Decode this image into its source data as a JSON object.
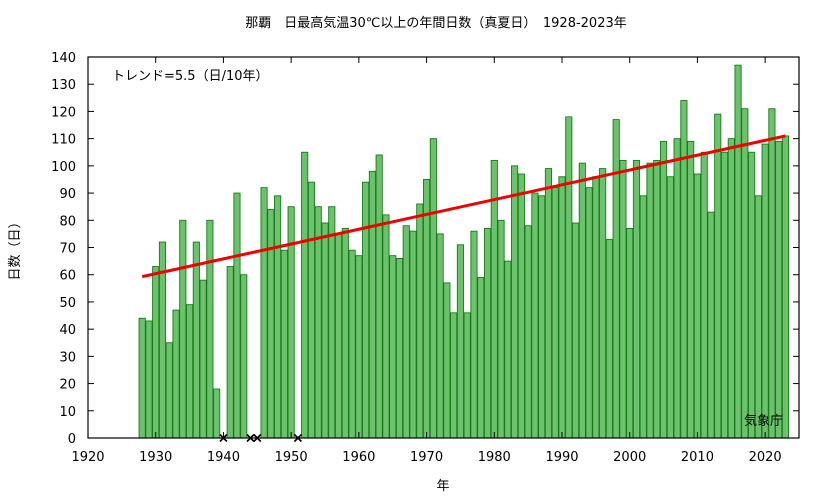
{
  "chart_data": {
    "type": "bar",
    "title": "那覇　日最高気温30℃以上の年間日数（真夏日）　1928-2023年",
    "xlabel": "年",
    "ylabel": "日数（日）",
    "annotation_trend": "トレンド=5.5（日/10年）",
    "annotation_source": "気象庁",
    "xlim": [
      1920,
      2025
    ],
    "ylim": [
      0,
      140
    ],
    "xticks": [
      1920,
      1930,
      1940,
      1950,
      1960,
      1970,
      1980,
      1990,
      2000,
      2010,
      2020
    ],
    "yticks": [
      0,
      10,
      20,
      30,
      40,
      50,
      60,
      70,
      80,
      90,
      100,
      110,
      120,
      130,
      140
    ],
    "grid": false,
    "x": [
      1928,
      1929,
      1930,
      1931,
      1932,
      1933,
      1934,
      1935,
      1936,
      1937,
      1938,
      1939,
      1940,
      1941,
      1942,
      1943,
      1944,
      1945,
      1946,
      1947,
      1948,
      1949,
      1950,
      1951,
      1952,
      1953,
      1954,
      1955,
      1956,
      1957,
      1958,
      1959,
      1960,
      1961,
      1962,
      1963,
      1964,
      1965,
      1966,
      1967,
      1968,
      1969,
      1970,
      1971,
      1972,
      1973,
      1974,
      1975,
      1976,
      1977,
      1978,
      1979,
      1980,
      1981,
      1982,
      1983,
      1984,
      1985,
      1986,
      1987,
      1988,
      1989,
      1990,
      1991,
      1992,
      1993,
      1994,
      1995,
      1996,
      1997,
      1998,
      1999,
      2000,
      2001,
      2002,
      2003,
      2004,
      2005,
      2006,
      2007,
      2008,
      2009,
      2010,
      2011,
      2012,
      2013,
      2014,
      2015,
      2016,
      2017,
      2018,
      2019,
      2020,
      2021,
      2022,
      2023
    ],
    "values": [
      44,
      43,
      63,
      72,
      35,
      47,
      80,
      49,
      72,
      58,
      80,
      18,
      null,
      63,
      90,
      60,
      null,
      null,
      92,
      84,
      89,
      69,
      85,
      null,
      105,
      94,
      85,
      79,
      85,
      75,
      77,
      69,
      67,
      94,
      98,
      104,
      82,
      67,
      66,
      78,
      76,
      86,
      95,
      110,
      75,
      57,
      46,
      71,
      46,
      76,
      59,
      77,
      102,
      80,
      65,
      100,
      97,
      78,
      90,
      89,
      99,
      92,
      96,
      118,
      79,
      101,
      92,
      96,
      99,
      73,
      117,
      102,
      77,
      102,
      89,
      101,
      102,
      109,
      96,
      110,
      124,
      109,
      97,
      105,
      83,
      119,
      105,
      110,
      137,
      121,
      105,
      89,
      108,
      121,
      109,
      111
    ],
    "missing_years": [
      1940,
      1944,
      1945,
      1951
    ],
    "trend": {
      "start": [
        1928,
        59.3
      ],
      "end": [
        2023,
        111.0
      ],
      "rate_per_decade": 5.5
    },
    "colors": {
      "bar_fill": "#6cc16c",
      "bar_stroke": "#1a7a1a",
      "trend": "#ee0000",
      "missing_marker": "#000000"
    }
  }
}
